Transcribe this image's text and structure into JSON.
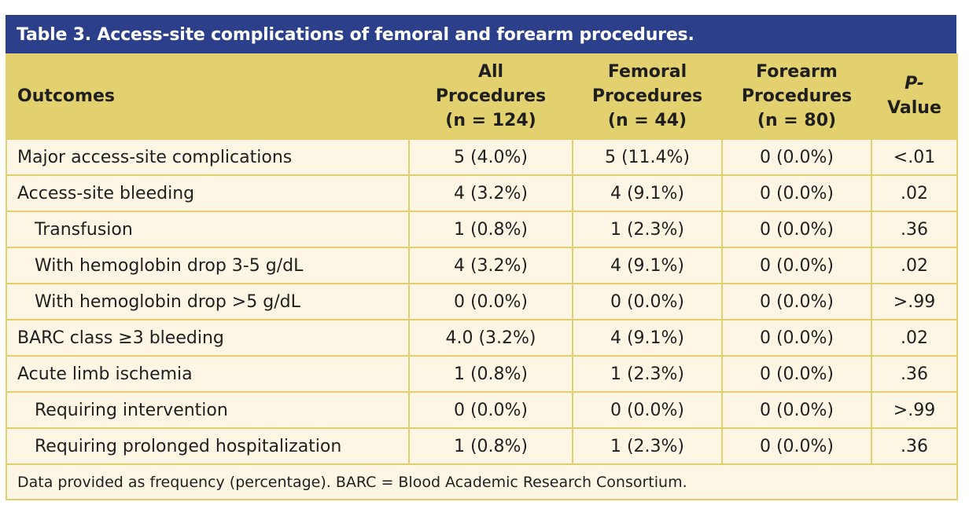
{
  "title": "Table 3. Access-site complications of femoral and forearm procedures.",
  "colors": {
    "title_bg": "#2b3f8a",
    "header_bg": "#e3d170",
    "body_bg": "#fdf6e5",
    "border": "#e3cf6c"
  },
  "headers": [
    {
      "lines": [
        "Outcomes"
      ]
    },
    {
      "lines": [
        "All",
        "Procedures",
        "(n = 124)"
      ]
    },
    {
      "lines": [
        "Femoral",
        "Procedures",
        "(n = 44)"
      ]
    },
    {
      "lines": [
        "Forearm",
        "Procedures",
        "(n = 80)"
      ]
    },
    {
      "lines": [
        "P-",
        "Value"
      ]
    }
  ],
  "rows": [
    {
      "label": "Major access-site complications",
      "indent": false,
      "all": "5 (4.0%)",
      "femoral": "5 (11.4%)",
      "forearm": "0 (0.0%)",
      "p": "<.01"
    },
    {
      "label": "Access-site bleeding",
      "indent": false,
      "all": "4 (3.2%)",
      "femoral": "4 (9.1%)",
      "forearm": "0 (0.0%)",
      "p": ".02"
    },
    {
      "label": "Transfusion",
      "indent": true,
      "all": "1 (0.8%)",
      "femoral": "1 (2.3%)",
      "forearm": "0 (0.0%)",
      "p": ".36"
    },
    {
      "label": "With hemoglobin drop 3-5 g/dL",
      "indent": true,
      "all": "4 (3.2%)",
      "femoral": "4 (9.1%)",
      "forearm": "0 (0.0%)",
      "p": ".02"
    },
    {
      "label": "With hemoglobin drop >5 g/dL",
      "indent": true,
      "all": "0 (0.0%)",
      "femoral": "0 (0.0%)",
      "forearm": "0 (0.0%)",
      "p": ">.99"
    },
    {
      "label": "BARC class ≥3 bleeding",
      "indent": false,
      "all": "4.0 (3.2%)",
      "femoral": "4 (9.1%)",
      "forearm": "0 (0.0%)",
      "p": ".02"
    },
    {
      "label": "Acute limb ischemia",
      "indent": false,
      "all": "1 (0.8%)",
      "femoral": "1 (2.3%)",
      "forearm": "0 (0.0%)",
      "p": ".36"
    },
    {
      "label": "Requiring intervention",
      "indent": true,
      "all": "0 (0.0%)",
      "femoral": "0 (0.0%)",
      "forearm": "0 (0.0%)",
      "p": ">.99"
    },
    {
      "label": "Requiring prolonged hospitalization",
      "indent": true,
      "all": "1 (0.8%)",
      "femoral": "1 (2.3%)",
      "forearm": "0 (0.0%)",
      "p": ".36"
    }
  ],
  "footnote": "Data provided as frequency (percentage). BARC = Blood Academic Research Consortium."
}
